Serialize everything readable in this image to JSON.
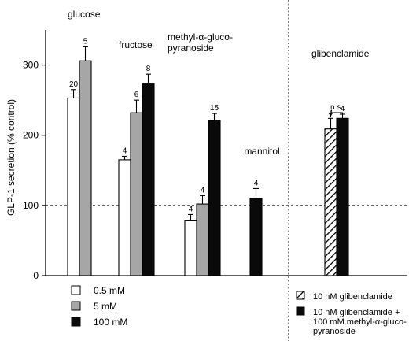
{
  "chart_data": {
    "type": "bar",
    "ylabel": "GLP-1 secretion  (% control)",
    "ylim": [
      0,
      350
    ],
    "yticks": [
      0,
      100,
      200,
      300
    ],
    "reference_line": 100,
    "groups": [
      {
        "label": "glucose",
        "bars": [
          {
            "series": "0.5 mM",
            "value": 253,
            "error": 12,
            "n": "20"
          },
          {
            "series": "5 mM",
            "value": 306,
            "error": 20,
            "n": "5"
          }
        ]
      },
      {
        "label": "fructose",
        "bars": [
          {
            "series": "0.5 mM",
            "value": 165,
            "error": 5,
            "n": "4"
          },
          {
            "series": "5 mM",
            "value": 232,
            "error": 18,
            "n": "6"
          },
          {
            "series": "100 mM",
            "value": 273,
            "error": 14,
            "n": "8"
          }
        ]
      },
      {
        "label": "methyl-α-gluco-\npyranoside",
        "bars": [
          {
            "series": "0.5 mM",
            "value": 79,
            "error": 8,
            "n": "4"
          },
          {
            "series": "5 mM",
            "value": 102,
            "error": 12,
            "n": "4"
          },
          {
            "series": "100 mM",
            "value": 221,
            "error": 10,
            "n": "15"
          }
        ]
      },
      {
        "label": "mannitol",
        "bars": [
          {
            "series": "100 mM",
            "value": 110,
            "error": 14,
            "n": "4"
          }
        ]
      },
      {
        "label": "glibenclamide",
        "bars": [
          {
            "series": "10 nM glibenclamide",
            "value": 209,
            "error": 15,
            "n": "4"
          },
          {
            "series": "10 nM glibenclamide + 100 mM methyl-α-gluco-pyranoside",
            "value": 224,
            "error": 6,
            "n": "4"
          }
        ],
        "annotation": "n.s."
      }
    ],
    "legend_left": [
      {
        "label": "0.5 mM",
        "fill": "white"
      },
      {
        "label": "5 mM",
        "fill": "gray"
      },
      {
        "label": "100 mM",
        "fill": "black"
      }
    ],
    "legend_right": [
      {
        "label": "10 nM glibenclamide",
        "fill": "hatched"
      },
      {
        "label": "10 nM glibenclamide +\n100 mM methyl-α-gluco-\npyranoside",
        "fill": "black"
      }
    ]
  },
  "colors": {
    "white": "#ffffff",
    "gray": "#a6a6a6",
    "black": "#0a0a0a",
    "axis": "#000000"
  }
}
